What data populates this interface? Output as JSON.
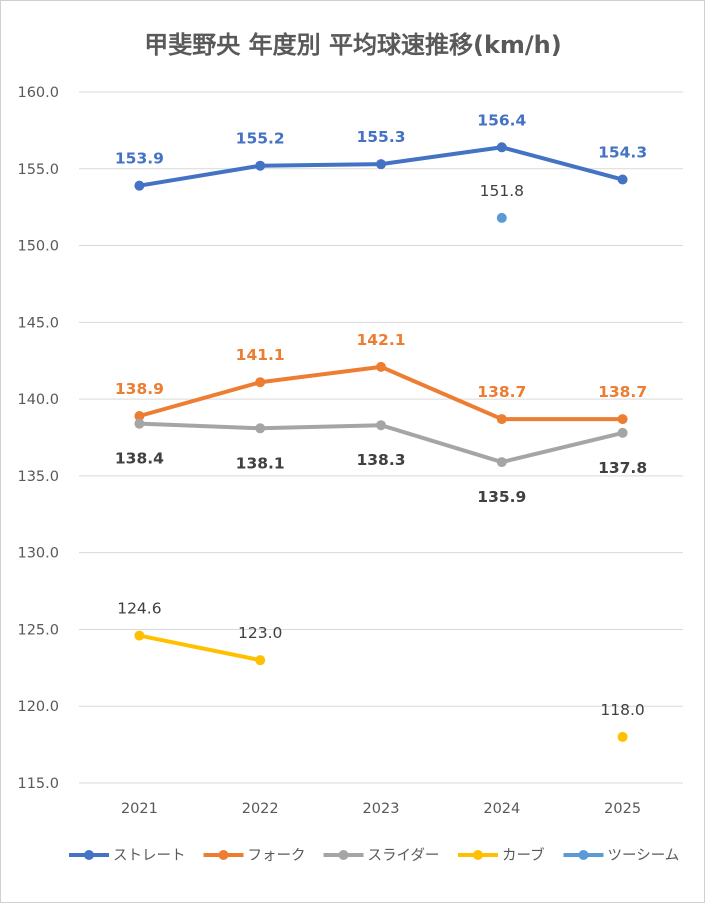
{
  "chart_data": {
    "type": "line",
    "title": "甲斐野央 年度別 平均球速推移(km/h)",
    "xlabel": "",
    "ylabel": "",
    "categories": [
      "2021",
      "2022",
      "2023",
      "2024",
      "2025"
    ],
    "ylim": [
      115,
      160
    ],
    "yticks": [
      "115.0",
      "120.0",
      "125.0",
      "130.0",
      "135.0",
      "140.0",
      "145.0",
      "150.0",
      "155.0",
      "160.0"
    ],
    "grid": true,
    "legend": "bottom",
    "series": [
      {
        "name": "ストレート",
        "color": "#4472c4",
        "values": [
          153.9,
          155.2,
          155.3,
          156.4,
          154.3
        ],
        "labels": [
          "153.9",
          "155.2",
          "155.3",
          "156.4",
          "154.3"
        ],
        "label_pos": "above",
        "label_color": "#4472c4",
        "label_bold": true
      },
      {
        "name": "フォーク",
        "color": "#ed7d31",
        "values": [
          138.9,
          141.1,
          142.1,
          138.7,
          138.7
        ],
        "labels": [
          "138.9",
          "141.1",
          "142.1",
          "138.7",
          "138.7"
        ],
        "label_pos": "above",
        "label_color": "#ed7d31",
        "label_bold": true
      },
      {
        "name": "スライダー",
        "color": "#a5a5a5",
        "values": [
          138.4,
          138.1,
          138.3,
          135.9,
          137.8
        ],
        "labels": [
          "138.4",
          "138.1",
          "138.3",
          "135.9",
          "137.8"
        ],
        "label_pos": "below",
        "label_color": "#404040",
        "label_bold": true
      },
      {
        "name": "カーブ",
        "color": "#ffc000",
        "values": [
          124.6,
          123.0,
          null,
          null,
          118.0
        ],
        "labels": [
          "124.6",
          "123.0",
          null,
          null,
          "118.0"
        ],
        "label_pos": "above",
        "label_color": "#404040",
        "label_bold": false
      },
      {
        "name": "ツーシーム",
        "color": "#5b9bd5",
        "values": [
          null,
          null,
          null,
          151.8,
          null
        ],
        "labels": [
          null,
          null,
          null,
          "151.8",
          null
        ],
        "label_pos": "above",
        "label_color": "#404040",
        "label_bold": false
      }
    ]
  }
}
